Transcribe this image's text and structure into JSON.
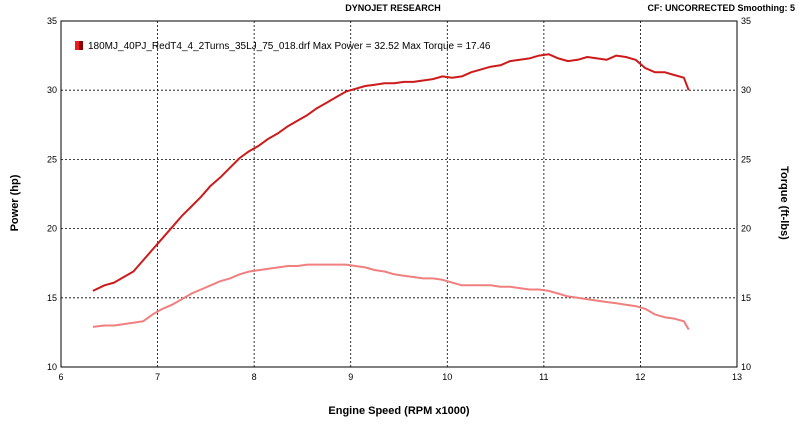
{
  "header": {
    "title": "DYNOJET RESEARCH",
    "settings": "CF: UNCORRECTED  Smoothing: 5"
  },
  "chart_data": {
    "type": "line",
    "title": "DYNOJET RESEARCH",
    "xlabel": "Engine Speed (RPM x1000)",
    "ylabel": "Power (hp)",
    "y2label": "Torque (ft-lbs)",
    "xlim": [
      6,
      13
    ],
    "ylim": [
      10,
      35
    ],
    "y2lim": [
      10,
      35
    ],
    "xticks": [
      "6",
      "7",
      "8",
      "9",
      "10",
      "11",
      "12",
      "13"
    ],
    "yticks": [
      "10",
      "15",
      "20",
      "25",
      "30",
      "35"
    ],
    "y2ticks": [
      "10",
      "15",
      "20",
      "25",
      "30",
      "35"
    ],
    "grid": true,
    "legend": {
      "placement": "top-left",
      "text": "180MJ_40PJ_RedT4_4_2Turns_35LJ_75_018.drf Max Power = 32.52     Max Torque = 17.46",
      "swatch_colors": [
        "#ee1c1c",
        "#8b0000"
      ]
    },
    "series": [
      {
        "label": "Power",
        "color": "#cc1b1b",
        "x": [
          6.33,
          6.45,
          6.55,
          6.65,
          6.75,
          6.85,
          6.95,
          7.05,
          7.15,
          7.25,
          7.35,
          7.45,
          7.55,
          7.65,
          7.75,
          7.85,
          7.95,
          8.05,
          8.15,
          8.25,
          8.35,
          8.45,
          8.55,
          8.65,
          8.75,
          8.85,
          8.95,
          9.05,
          9.15,
          9.25,
          9.35,
          9.45,
          9.55,
          9.65,
          9.75,
          9.85,
          9.95,
          10.05,
          10.15,
          10.25,
          10.35,
          10.45,
          10.55,
          10.65,
          10.75,
          10.85,
          10.95,
          11.05,
          11.15,
          11.25,
          11.35,
          11.45,
          11.55,
          11.65,
          11.75,
          11.85,
          11.95,
          12.05,
          12.15,
          12.25,
          12.35,
          12.45,
          12.5
        ],
        "values": [
          15.5,
          15.9,
          16.1,
          16.5,
          16.9,
          17.7,
          18.5,
          19.3,
          20.1,
          20.9,
          21.6,
          22.3,
          23.1,
          23.7,
          24.4,
          25.1,
          25.6,
          26.0,
          26.5,
          26.9,
          27.4,
          27.8,
          28.2,
          28.7,
          29.1,
          29.5,
          29.9,
          30.1,
          30.3,
          30.4,
          30.5,
          30.5,
          30.6,
          30.6,
          30.7,
          30.8,
          31.0,
          30.9,
          31.0,
          31.3,
          31.5,
          31.7,
          31.8,
          32.1,
          32.2,
          32.3,
          32.5,
          32.6,
          32.3,
          32.1,
          32.2,
          32.4,
          32.3,
          32.2,
          32.5,
          32.4,
          32.2,
          31.6,
          31.3,
          31.3,
          31.1,
          30.9,
          30.0
        ]
      },
      {
        "label": "Torque",
        "color": "#f08080",
        "x": [
          6.33,
          6.45,
          6.55,
          6.65,
          6.75,
          6.85,
          6.95,
          7.05,
          7.15,
          7.25,
          7.35,
          7.45,
          7.55,
          7.65,
          7.75,
          7.85,
          7.95,
          8.05,
          8.15,
          8.25,
          8.35,
          8.45,
          8.55,
          8.65,
          8.75,
          8.85,
          8.95,
          9.05,
          9.15,
          9.25,
          9.35,
          9.45,
          9.55,
          9.65,
          9.75,
          9.85,
          9.95,
          10.05,
          10.15,
          10.25,
          10.35,
          10.45,
          10.55,
          10.65,
          10.75,
          10.85,
          10.95,
          11.05,
          11.15,
          11.25,
          11.35,
          11.45,
          11.55,
          11.65,
          11.75,
          11.85,
          11.95,
          12.05,
          12.15,
          12.25,
          12.35,
          12.45,
          12.5
        ],
        "values": [
          12.9,
          13.0,
          13.0,
          13.1,
          13.2,
          13.3,
          13.8,
          14.2,
          14.5,
          14.9,
          15.3,
          15.6,
          15.9,
          16.2,
          16.4,
          16.7,
          16.9,
          17.0,
          17.1,
          17.2,
          17.3,
          17.3,
          17.4,
          17.4,
          17.4,
          17.4,
          17.4,
          17.3,
          17.2,
          17.0,
          16.9,
          16.7,
          16.6,
          16.5,
          16.4,
          16.4,
          16.3,
          16.1,
          15.9,
          15.9,
          15.9,
          15.9,
          15.8,
          15.8,
          15.7,
          15.6,
          15.6,
          15.5,
          15.3,
          15.1,
          15.0,
          14.9,
          14.8,
          14.7,
          14.6,
          14.5,
          14.4,
          14.2,
          13.8,
          13.6,
          13.5,
          13.3,
          12.7
        ]
      }
    ]
  }
}
